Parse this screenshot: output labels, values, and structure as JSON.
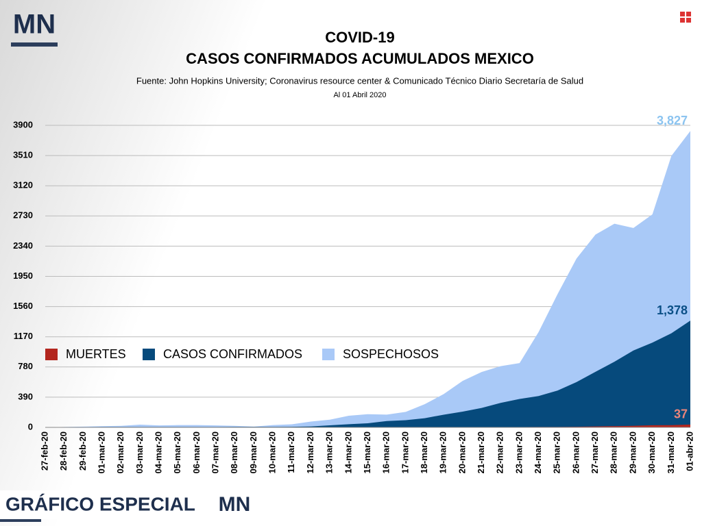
{
  "chart_data": {
    "type": "area",
    "title": "COVID-19",
    "subtitle": "CASOS CONFIRMADOS ACUMULADOS MEXICO",
    "source": "Fuente: John Hopkins University; Coronavirus resource center & Comunicado Técnico Diario Secretaría de Salud",
    "date_note": "Al 01 Abril 2020",
    "categories": [
      "27-feb-20",
      "28-feb-20",
      "29-feb-20",
      "01-mar-20",
      "02-mar-20",
      "03-mar-20",
      "04-mar-20",
      "05-mar-20",
      "06-mar-20",
      "07-mar-20",
      "08-mar-20",
      "09-mar-20",
      "10-mar-20",
      "11-mar-20",
      "12-mar-20",
      "13-mar-20",
      "14-mar-20",
      "15-mar-20",
      "16-mar-20",
      "17-mar-20",
      "18-mar-20",
      "19-mar-20",
      "20-mar-20",
      "21-mar-20",
      "22-mar-20",
      "23-mar-20",
      "24-mar-20",
      "25-mar-20",
      "26-mar-20",
      "27-mar-20",
      "28-mar-20",
      "29-mar-20",
      "30-mar-20",
      "31-mar-20",
      "01-abr-20"
    ],
    "series": [
      {
        "name": "MUERTES",
        "color": "#b3261e",
        "label_color": "#e8847a",
        "values": [
          0,
          0,
          0,
          0,
          0,
          0,
          0,
          0,
          0,
          0,
          0,
          0,
          0,
          0,
          0,
          0,
          0,
          0,
          0,
          0,
          0,
          1,
          2,
          2,
          2,
          4,
          5,
          6,
          8,
          12,
          16,
          20,
          28,
          29,
          37
        ],
        "value_labels": [
          null,
          null,
          null,
          null,
          null,
          null,
          null,
          null,
          null,
          null,
          null,
          null,
          null,
          null,
          null,
          null,
          null,
          null,
          null,
          null,
          null,
          null,
          null,
          null,
          null,
          null,
          null,
          null,
          null,
          null,
          null,
          null,
          null,
          null,
          "37"
        ]
      },
      {
        "name": "CASOS CONFIRMADOS",
        "color": "#064a7c",
        "label_color": "#0a4f86",
        "values": [
          2,
          4,
          4,
          5,
          5,
          5,
          5,
          5,
          6,
          6,
          7,
          7,
          7,
          8,
          12,
          26,
          41,
          53,
          82,
          93,
          118,
          164,
          203,
          251,
          316,
          367,
          405,
          475,
          585,
          717,
          848,
          993,
          1094,
          1215,
          1378
        ],
        "value_labels": [
          null,
          null,
          null,
          null,
          null,
          null,
          null,
          null,
          null,
          null,
          null,
          null,
          null,
          null,
          null,
          null,
          null,
          null,
          null,
          null,
          null,
          null,
          null,
          null,
          null,
          null,
          null,
          null,
          null,
          null,
          null,
          null,
          null,
          null,
          "1,378"
        ]
      },
      {
        "name": "SOSPECHOSOS",
        "color": "#a9c9f7",
        "label_color": "#8cc4f0",
        "values": [
          0,
          5,
          10,
          15,
          20,
          35,
          25,
          30,
          30,
          25,
          20,
          10,
          30,
          40,
          75,
          100,
          150,
          170,
          165,
          200,
          300,
          430,
          600,
          715,
          790,
          830,
          1230,
          1720,
          2180,
          2490,
          2630,
          2575,
          2750,
          3505,
          3827
        ],
        "value_labels": [
          null,
          null,
          null,
          null,
          null,
          null,
          null,
          null,
          null,
          null,
          null,
          null,
          null,
          null,
          null,
          null,
          null,
          null,
          null,
          null,
          null,
          null,
          null,
          null,
          null,
          null,
          null,
          null,
          null,
          null,
          null,
          null,
          null,
          null,
          "3,827"
        ]
      }
    ],
    "ylim": [
      0,
      3900
    ],
    "yticks": [
      0,
      390,
      780,
      1170,
      1560,
      1950,
      2340,
      2730,
      3120,
      3510,
      3900
    ],
    "grid": true,
    "legend": "middle-left"
  },
  "branding": {
    "logo": "MN",
    "footer": "GRÁFICO ESPECIAL",
    "footer_logo": "MN"
  }
}
